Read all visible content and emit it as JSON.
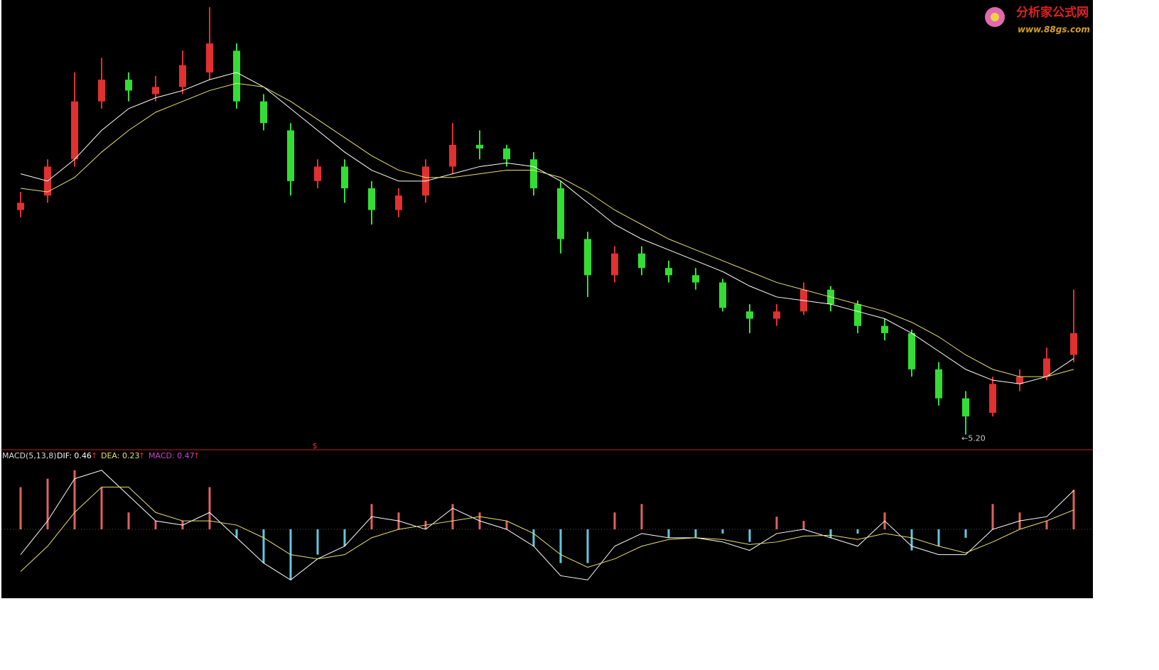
{
  "chart_data": [
    {
      "type": "candlestick",
      "open": [
        8.3,
        8.5,
        9.0,
        9.8,
        10.1,
        9.9,
        10.0,
        10.2,
        10.5,
        9.8,
        9.4,
        8.7,
        8.9,
        8.6,
        8.3,
        8.5,
        8.9,
        9.2,
        9.15,
        9.0,
        8.6,
        7.9,
        7.4,
        7.7,
        7.5,
        7.4,
        7.3,
        6.9,
        6.8,
        6.9,
        7.2,
        7.0,
        6.7,
        6.6,
        6.1,
        5.7,
        5.5,
        5.9,
        6.0,
        6.3
      ],
      "high": [
        8.55,
        9.0,
        10.2,
        10.4,
        10.2,
        10.15,
        10.5,
        11.1,
        10.6,
        9.9,
        9.5,
        9.0,
        9.0,
        8.7,
        8.6,
        9.0,
        9.5,
        9.4,
        9.2,
        9.1,
        8.7,
        8.0,
        7.8,
        7.8,
        7.6,
        7.5,
        7.35,
        7.0,
        7.0,
        7.3,
        7.25,
        7.05,
        6.8,
        6.65,
        6.2,
        5.8,
        6.0,
        6.1,
        6.4,
        7.2
      ],
      "low": [
        8.2,
        8.4,
        8.9,
        9.7,
        9.8,
        9.8,
        9.9,
        10.1,
        9.7,
        9.4,
        8.5,
        8.6,
        8.4,
        8.1,
        8.2,
        8.4,
        8.8,
        9.0,
        8.9,
        8.5,
        7.7,
        7.1,
        7.3,
        7.4,
        7.3,
        7.2,
        6.9,
        6.6,
        6.7,
        6.85,
        6.9,
        6.6,
        6.5,
        6.0,
        5.6,
        5.2,
        5.45,
        5.8,
        5.95,
        6.2
      ],
      "close": [
        8.4,
        8.9,
        9.8,
        10.1,
        9.95,
        10.0,
        10.3,
        10.6,
        9.8,
        9.5,
        8.7,
        8.9,
        8.6,
        8.3,
        8.5,
        8.9,
        9.2,
        9.15,
        9.0,
        8.6,
        7.9,
        7.4,
        7.7,
        7.5,
        7.4,
        7.3,
        6.95,
        6.8,
        6.9,
        7.2,
        7.0,
        6.7,
        6.6,
        6.1,
        5.7,
        5.45,
        5.9,
        6.0,
        6.25,
        6.6
      ],
      "up_color": "#e03030",
      "down_color": "#33dd33",
      "series": [
        {
          "color": "#ffffff",
          "values": [
            8.8,
            8.7,
            9.0,
            9.4,
            9.7,
            9.85,
            9.95,
            10.1,
            10.2,
            10.0,
            9.7,
            9.4,
            9.1,
            8.85,
            8.7,
            8.7,
            8.8,
            8.9,
            8.95,
            8.9,
            8.7,
            8.4,
            8.1,
            7.9,
            7.75,
            7.6,
            7.45,
            7.25,
            7.1,
            7.05,
            7.0,
            6.9,
            6.8,
            6.6,
            6.35,
            6.1,
            5.95,
            5.9,
            6.0,
            6.25
          ]
        },
        {
          "color": "#e8e070",
          "values": [
            8.6,
            8.55,
            8.75,
            9.1,
            9.4,
            9.65,
            9.8,
            9.95,
            10.05,
            10.0,
            9.8,
            9.55,
            9.3,
            9.05,
            8.85,
            8.75,
            8.75,
            8.8,
            8.85,
            8.85,
            8.75,
            8.55,
            8.3,
            8.1,
            7.9,
            7.75,
            7.6,
            7.45,
            7.3,
            7.2,
            7.1,
            7.0,
            6.9,
            6.75,
            6.55,
            6.3,
            6.1,
            6.0,
            6.0,
            6.1
          ]
        }
      ],
      "ylim": [
        5.0,
        11.2
      ],
      "annotation": "←5.20",
      "marker": "$",
      "logo_title": "分析家公式网",
      "logo_url": "www.88gs.com"
    },
    {
      "type": "macd",
      "title": "MACD(5,13,8)",
      "dif_label": "DIF: 0.46",
      "dea_label": "DEA: 0.23",
      "macd_label": "MACD: 0.47",
      "arrow": "↑",
      "values": [
        0.5,
        0.6,
        0.7,
        0.5,
        0.2,
        0.1,
        0.1,
        0.5,
        -0.1,
        -0.4,
        -0.6,
        -0.3,
        -0.2,
        0.3,
        0.2,
        0.1,
        0.3,
        0.2,
        0.1,
        -0.2,
        -0.4,
        -0.4,
        0.2,
        0.3,
        -0.1,
        -0.1,
        -0.05,
        -0.15,
        0.15,
        0.1,
        -0.1,
        -0.05,
        0.2,
        -0.25,
        -0.2,
        -0.1,
        0.3,
        0.2,
        0.1,
        0.47
      ],
      "up_color": "#e06060",
      "down_color": "#60c8e0",
      "series": [
        {
          "name": "DIF",
          "color": "#ffffff",
          "values": [
            -0.3,
            0.1,
            0.6,
            0.7,
            0.4,
            0.1,
            0.05,
            0.2,
            -0.1,
            -0.4,
            -0.6,
            -0.35,
            -0.2,
            0.15,
            0.1,
            0.0,
            0.25,
            0.1,
            0.0,
            -0.2,
            -0.55,
            -0.6,
            -0.2,
            -0.05,
            -0.1,
            -0.1,
            -0.15,
            -0.25,
            -0.05,
            0.0,
            -0.1,
            -0.2,
            0.1,
            -0.2,
            -0.3,
            -0.3,
            0.0,
            0.1,
            0.15,
            0.46
          ]
        },
        {
          "name": "DEA",
          "color": "#e8e070",
          "values": [
            -0.5,
            -0.2,
            0.2,
            0.5,
            0.5,
            0.2,
            0.1,
            0.1,
            0.05,
            -0.1,
            -0.3,
            -0.35,
            -0.3,
            -0.1,
            0.0,
            0.05,
            0.1,
            0.15,
            0.1,
            -0.05,
            -0.3,
            -0.45,
            -0.35,
            -0.2,
            -0.12,
            -0.1,
            -0.12,
            -0.18,
            -0.15,
            -0.08,
            -0.07,
            -0.12,
            -0.05,
            -0.1,
            -0.2,
            -0.28,
            -0.15,
            0.0,
            0.1,
            0.23
          ]
        }
      ],
      "ylim": [
        -0.8,
        0.8
      ]
    }
  ]
}
